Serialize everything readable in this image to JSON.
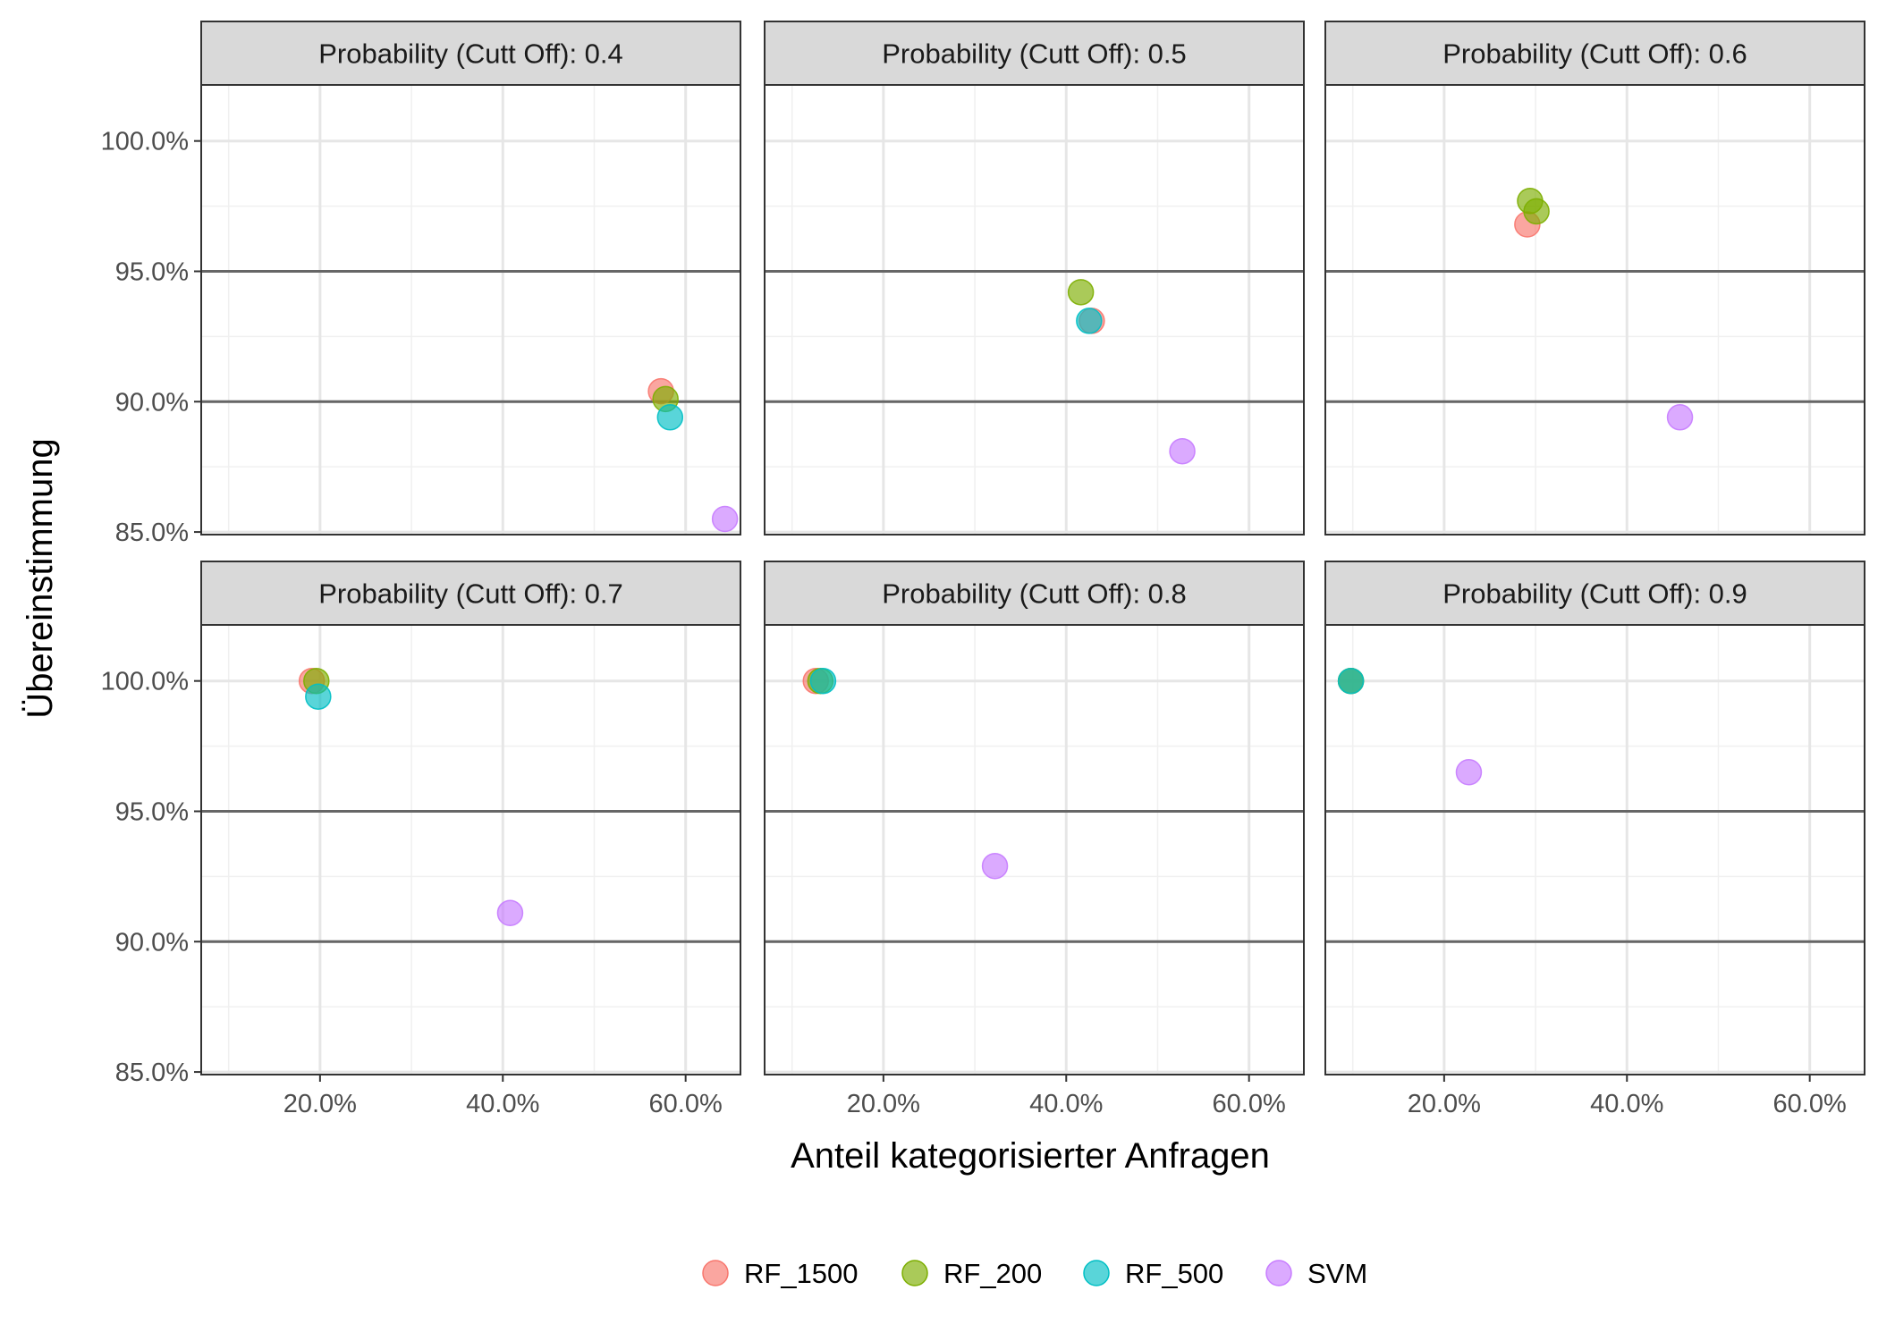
{
  "chart_data": {
    "type": "scatter",
    "xlabel": "Anteil kategorisierter Anfragen",
    "ylabel": "Übereinstimmung",
    "xlim": [
      0.07,
      0.66
    ],
    "ylim": [
      0.849,
      1.0215
    ],
    "x_ticks": [
      0.2,
      0.4,
      0.6
    ],
    "x_tick_labels": [
      "20.0%",
      "40.0%",
      "60.0%"
    ],
    "y_ticks": [
      0.85,
      0.9,
      0.95,
      1.0
    ],
    "y_tick_labels": [
      "85.0%",
      "90.0%",
      "95.0%",
      "100.0%"
    ],
    "emphasized_hlines": [
      0.9,
      0.95
    ],
    "grid": true,
    "legend_position": "bottom",
    "series": [
      {
        "name": "RF_1500",
        "color": "#F8766D"
      },
      {
        "name": "RF_200",
        "color": "#7CAE00"
      },
      {
        "name": "RF_500",
        "color": "#00BFC4"
      },
      {
        "name": "SVM",
        "color": "#C77CFF"
      }
    ],
    "panels": [
      {
        "title": "Probability (Cutt Off): 0.4",
        "points": [
          {
            "series": "RF_1500",
            "x": 0.573,
            "y": 0.904
          },
          {
            "series": "RF_200",
            "x": 0.578,
            "y": 0.901
          },
          {
            "series": "RF_500",
            "x": 0.583,
            "y": 0.894
          },
          {
            "series": "SVM",
            "x": 0.643,
            "y": 0.855
          }
        ]
      },
      {
        "title": "Probability (Cutt Off): 0.5",
        "points": [
          {
            "series": "RF_1500",
            "x": 0.428,
            "y": 0.931
          },
          {
            "series": "RF_200",
            "x": 0.416,
            "y": 0.942
          },
          {
            "series": "RF_500",
            "x": 0.425,
            "y": 0.931
          },
          {
            "series": "SVM",
            "x": 0.527,
            "y": 0.881
          }
        ]
      },
      {
        "title": "Probability (Cutt Off): 0.6",
        "points": [
          {
            "series": "RF_1500",
            "x": 0.291,
            "y": 0.968
          },
          {
            "series": "RF_200",
            "x": 0.294,
            "y": 0.977
          },
          {
            "series": "RF_200",
            "x": 0.301,
            "y": 0.973
          },
          {
            "series": "SVM",
            "x": 0.458,
            "y": 0.894
          }
        ]
      },
      {
        "title": "Probability (Cutt Off): 0.7",
        "points": [
          {
            "series": "RF_1500",
            "x": 0.191,
            "y": 1.0
          },
          {
            "series": "RF_200",
            "x": 0.196,
            "y": 1.0
          },
          {
            "series": "RF_500",
            "x": 0.198,
            "y": 0.994
          },
          {
            "series": "SVM",
            "x": 0.408,
            "y": 0.911
          }
        ]
      },
      {
        "title": "Probability (Cutt Off): 0.8",
        "points": [
          {
            "series": "RF_1500",
            "x": 0.126,
            "y": 1.0
          },
          {
            "series": "RF_200",
            "x": 0.131,
            "y": 1.0
          },
          {
            "series": "RF_500",
            "x": 0.134,
            "y": 1.0
          },
          {
            "series": "SVM",
            "x": 0.322,
            "y": 0.929
          }
        ]
      },
      {
        "title": "Probability (Cutt Off): 0.9",
        "points": [
          {
            "series": "RF_1500",
            "x": 0.098,
            "y": 1.0
          },
          {
            "series": "RF_200",
            "x": 0.098,
            "y": 1.0
          },
          {
            "series": "RF_500",
            "x": 0.098,
            "y": 1.0
          },
          {
            "series": "SVM",
            "x": 0.227,
            "y": 0.965
          }
        ]
      }
    ]
  }
}
